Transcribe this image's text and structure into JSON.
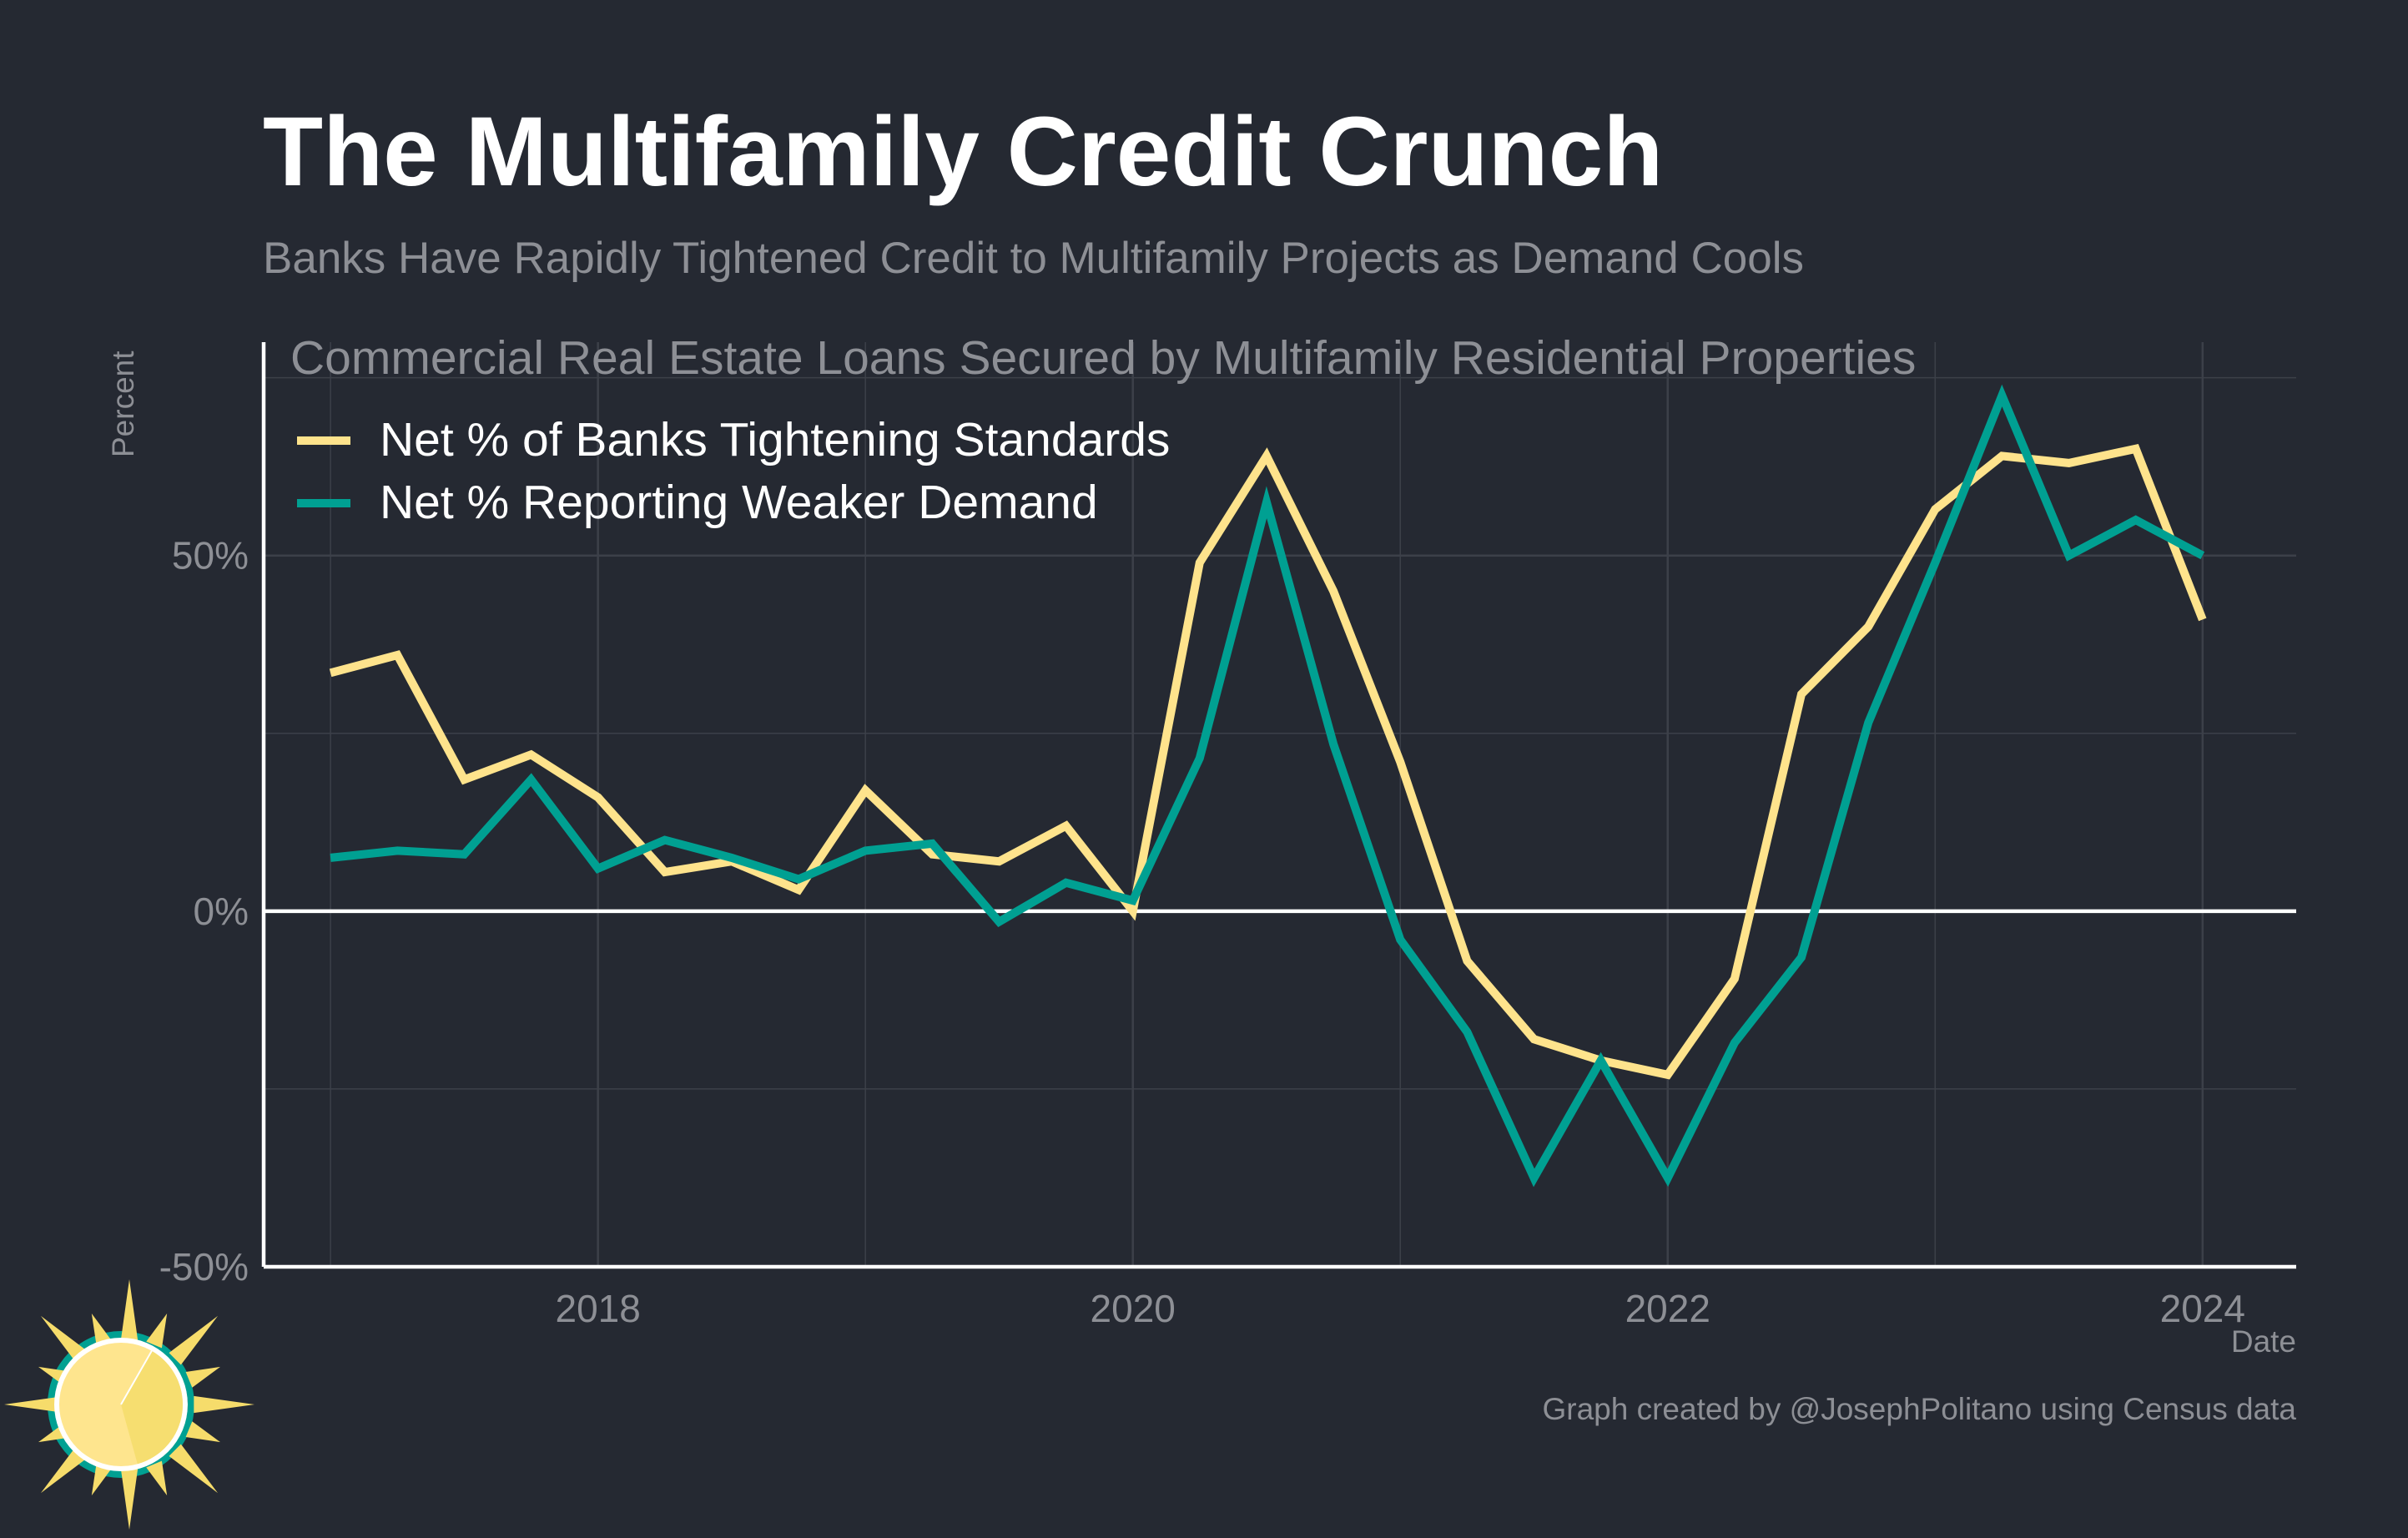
{
  "colors": {
    "background": "#252932",
    "tightening": "#FEE38C",
    "demand": "#00A092",
    "text_white": "#FFFFFF",
    "text_muted": "#8D8F95",
    "grid": "#3C4049"
  },
  "logo": {
    "icon": "sun-logo-icon"
  },
  "chart_data": {
    "type": "line",
    "title": "The Multifamily Credit Crunch",
    "subtitle": "Banks Have Rapidly Tightened Credit to Multifamily Projects as Demand Cools",
    "panel_title": "Commercial Real Estate Loans Secured by Multifamily Residential Properties",
    "xlabel": "Date",
    "ylabel": "Percent",
    "caption": "Graph created by @JosephPolitano using Census data",
    "xlim": [
      2016.75,
      2024.35
    ],
    "ylim": [
      -50,
      80
    ],
    "x_ticks": [
      2018,
      2020,
      2022,
      2024
    ],
    "x_tick_labels": [
      "2018",
      "2020",
      "2022",
      "2024"
    ],
    "y_ticks": [
      -50,
      0,
      50
    ],
    "y_tick_labels": [
      "-50%",
      "0%",
      "50%"
    ],
    "grid": true,
    "legend_position": "top-left",
    "x": [
      "2017-Q1",
      "2017-Q2",
      "2017-Q3",
      "2017-Q4",
      "2018-Q1",
      "2018-Q2",
      "2018-Q3",
      "2018-Q4",
      "2019-Q1",
      "2019-Q2",
      "2019-Q3",
      "2019-Q4",
      "2020-Q1",
      "2020-Q2",
      "2020-Q3",
      "2020-Q4",
      "2021-Q1",
      "2021-Q2",
      "2021-Q3",
      "2021-Q4",
      "2022-Q1",
      "2022-Q2",
      "2022-Q3",
      "2022-Q4",
      "2023-Q1",
      "2023-Q2",
      "2023-Q3",
      "2023-Q4",
      "2024-Q1"
    ],
    "series": [
      {
        "name": "Net % of Banks Tightening Standards",
        "color": "#FEE38C",
        "values": [
          33.5,
          36,
          18.5,
          22,
          16,
          5.5,
          7,
          3,
          17,
          8,
          7,
          12,
          0,
          49,
          64,
          45,
          21,
          -7,
          -18,
          -21,
          -23,
          -9.5,
          30.5,
          40,
          56.5,
          64,
          63,
          65,
          41
        ]
      },
      {
        "name": "Net % Reporting Weaker Demand",
        "color": "#00A092",
        "values": [
          7.5,
          8.5,
          8,
          18.5,
          6,
          10,
          7.5,
          4.5,
          8.5,
          9.5,
          -1.5,
          4,
          1.5,
          21.5,
          57.5,
          23.5,
          -4,
          -17,
          -37.5,
          -21,
          -37.5,
          -18.5,
          -6.5,
          26.5,
          49,
          72.5,
          50,
          55,
          50
        ]
      }
    ]
  }
}
